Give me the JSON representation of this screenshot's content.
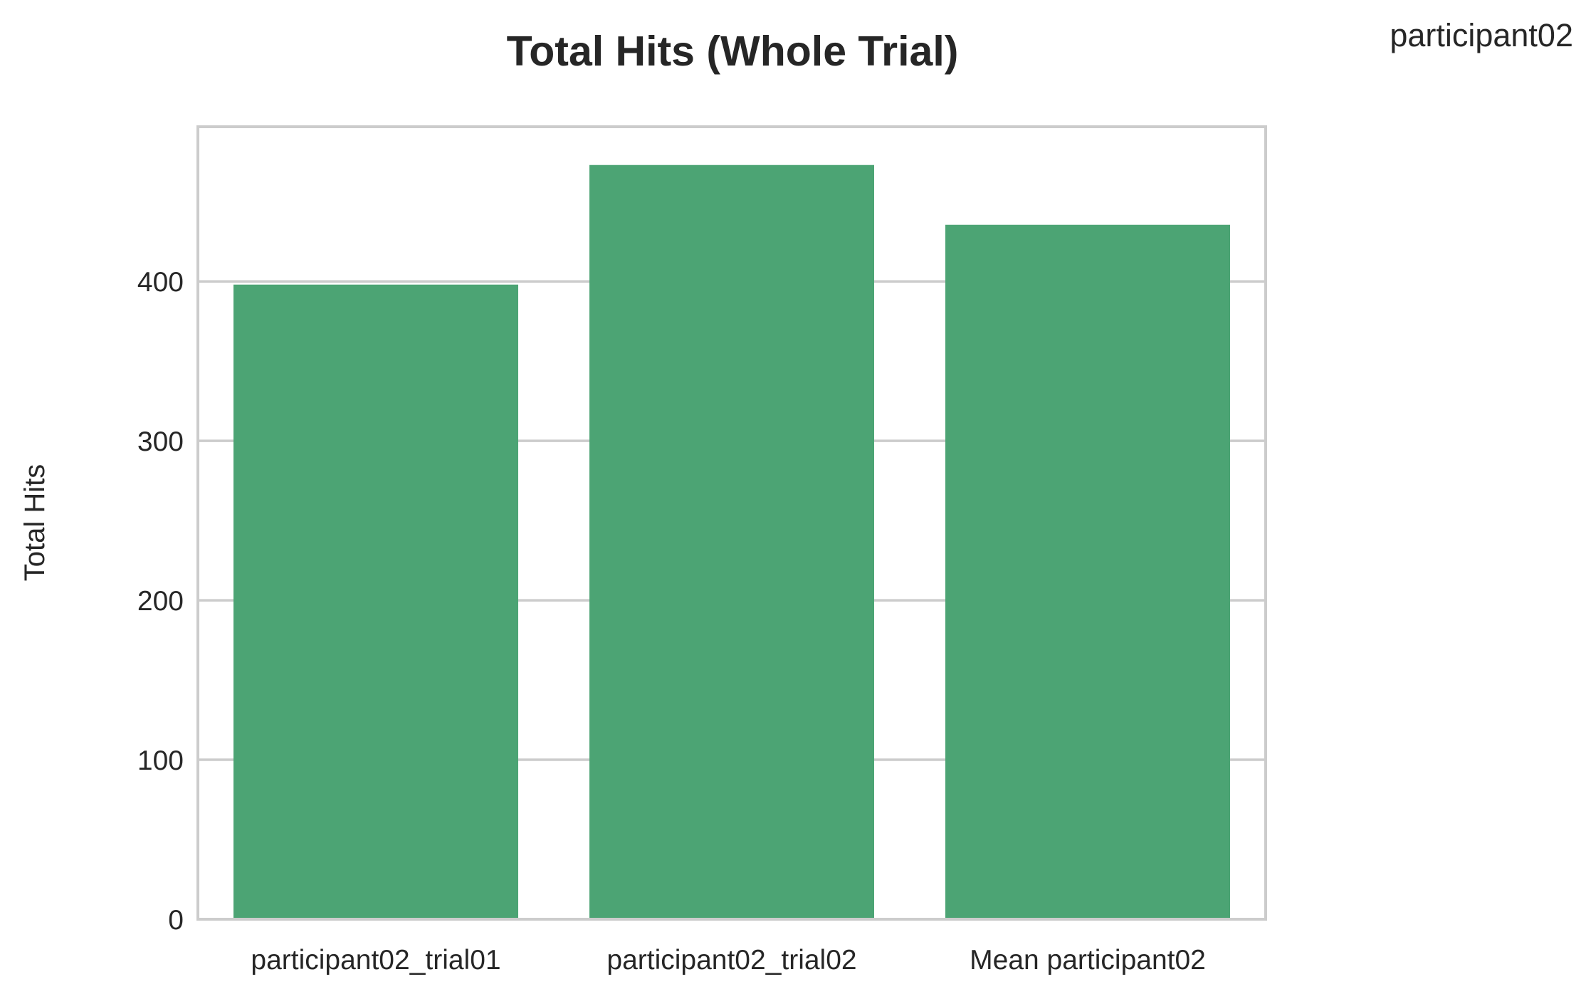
{
  "chart_data": {
    "type": "bar",
    "title": "Total Hits (Whole Trial)",
    "legend_text": "participant02",
    "xlabel": "",
    "ylabel": "Total Hits",
    "categories": [
      "participant02_trial01",
      "participant02_trial02",
      "Mean participant02"
    ],
    "values": [
      398,
      473,
      435.5
    ],
    "ylim": [
      0,
      497
    ],
    "yticks": [
      0,
      100,
      200,
      300,
      400
    ],
    "grid": "horizontal",
    "colors": {
      "bar": "#4ca474",
      "grid": "#cccccc",
      "spine": "#cccccc",
      "text": "#262626"
    }
  }
}
